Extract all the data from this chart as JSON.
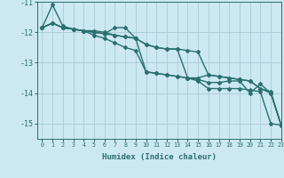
{
  "xlabel": "Humidex (Indice chaleur)",
  "xlim": [
    -0.5,
    23
  ],
  "ylim": [
    -15.5,
    -11.0
  ],
  "yticks": [
    -15,
    -14,
    -13,
    -12,
    -11
  ],
  "xticks": [
    0,
    1,
    2,
    3,
    4,
    5,
    6,
    7,
    8,
    9,
    10,
    11,
    12,
    13,
    14,
    15,
    16,
    17,
    18,
    19,
    20,
    21,
    22,
    23
  ],
  "bg_color": "#cce8f0",
  "grid_color": "#aaccd8",
  "line_color": "#2a7070",
  "series": [
    [
      -11.85,
      -11.1,
      -11.8,
      -11.9,
      -11.95,
      -12.1,
      -12.2,
      -12.35,
      -12.5,
      -12.6,
      -13.3,
      -13.35,
      -13.4,
      -13.45,
      -13.5,
      -13.6,
      -13.85,
      -13.85,
      -13.85,
      -13.85,
      -13.9,
      -13.95,
      -15.0,
      -15.05
    ],
    [
      -11.85,
      -11.7,
      -11.85,
      -11.9,
      -11.95,
      -11.95,
      -12.0,
      -12.1,
      -12.15,
      -12.2,
      -13.3,
      -13.35,
      -13.4,
      -13.45,
      -13.5,
      -13.5,
      -13.4,
      -13.45,
      -13.5,
      -13.55,
      -13.6,
      -13.85,
      -13.95,
      -15.05
    ],
    [
      -11.85,
      -11.7,
      -11.85,
      -11.9,
      -11.95,
      -12.0,
      -12.05,
      -11.85,
      -11.85,
      -12.2,
      -12.4,
      -12.5,
      -12.55,
      -12.55,
      -13.5,
      -13.55,
      -13.65,
      -13.65,
      -13.6,
      -13.6,
      -14.0,
      -13.7,
      -14.0,
      -15.05
    ],
    [
      -11.85,
      -11.7,
      -11.85,
      -11.9,
      -11.95,
      -12.0,
      -12.05,
      -12.1,
      -12.15,
      -12.2,
      -12.4,
      -12.5,
      -12.55,
      -12.55,
      -12.6,
      -12.65,
      -13.4,
      -13.45,
      -13.5,
      -13.55,
      -13.6,
      -13.85,
      -14.0,
      -15.05
    ]
  ],
  "line_width": 1.0,
  "marker": "D",
  "marker_size": 2.0
}
